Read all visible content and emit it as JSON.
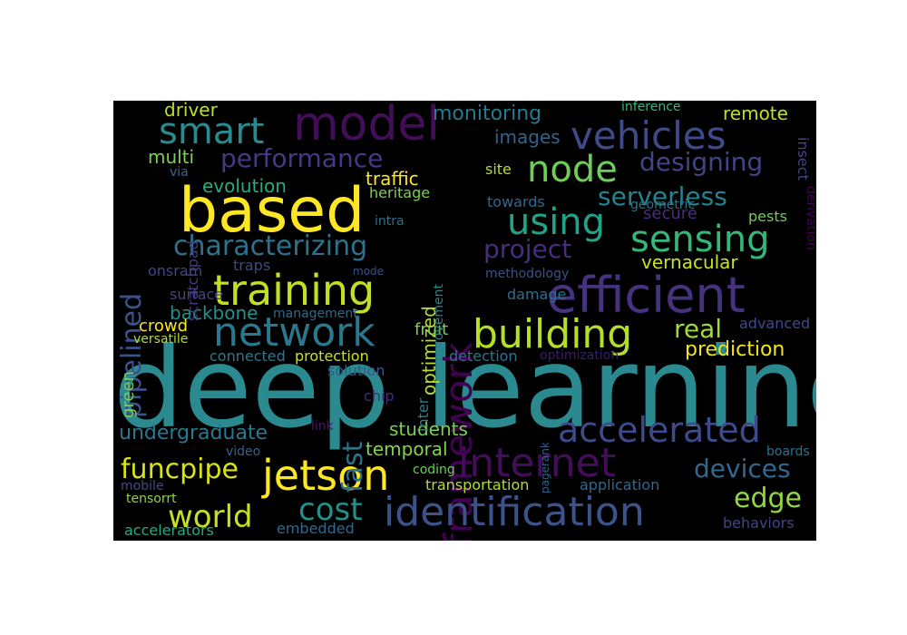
{
  "word_cloud": {
    "background": "#000000",
    "words": [
      {
        "text": "deep learning",
        "color": "#2a8a8f"
      },
      {
        "text": "based",
        "color": "#fde725"
      },
      {
        "text": "model",
        "color": "#440d5a"
      },
      {
        "text": "efficient",
        "color": "#46327e"
      },
      {
        "text": "framework",
        "color": "#440154"
      },
      {
        "text": "training",
        "color": "#c2df23"
      },
      {
        "text": "network",
        "color": "#2a788e"
      },
      {
        "text": "building",
        "color": "#b5de2b"
      },
      {
        "text": "jetson",
        "color": "#fde725"
      },
      {
        "text": "identification",
        "color": "#3b528b"
      },
      {
        "text": "internet",
        "color": "#440d5a"
      },
      {
        "text": "accelerated",
        "color": "#3e4a89"
      },
      {
        "text": "sensing",
        "color": "#35b779"
      },
      {
        "text": "smart",
        "color": "#2a8a8f"
      },
      {
        "text": "vehicles",
        "color": "#3e4a89"
      },
      {
        "text": "node",
        "color": "#6ece58"
      },
      {
        "text": "using",
        "color": "#20a386"
      },
      {
        "text": "characterizing",
        "color": "#2c728e"
      },
      {
        "text": "pipelined",
        "color": "#3b528b"
      },
      {
        "text": "funcpipe",
        "color": "#d8e219"
      },
      {
        "text": "cost",
        "color": "#21918c"
      },
      {
        "text": "world",
        "color": "#c8e020"
      },
      {
        "text": "edge",
        "color": "#8fd744"
      },
      {
        "text": "devices",
        "color": "#31688e"
      },
      {
        "text": "fast",
        "color": "#2c728e"
      },
      {
        "text": "performance",
        "color": "#443a83"
      },
      {
        "text": "designing",
        "color": "#414487"
      },
      {
        "text": "serverless",
        "color": "#26828e"
      },
      {
        "text": "project",
        "color": "#472d7b"
      },
      {
        "text": "real",
        "color": "#a0da39"
      },
      {
        "text": "prediction",
        "color": "#f1e51d"
      },
      {
        "text": "undergraduate",
        "color": "#2a788e"
      },
      {
        "text": "students",
        "color": "#7ad151"
      },
      {
        "text": "temporal",
        "color": "#84d44b"
      },
      {
        "text": "monitoring",
        "color": "#2a788e"
      },
      {
        "text": "images",
        "color": "#33638d"
      },
      {
        "text": "remote",
        "color": "#c2df23"
      },
      {
        "text": "driver",
        "color": "#bddf26"
      },
      {
        "text": "multi",
        "color": "#7ad151"
      },
      {
        "text": "evolution",
        "color": "#25ac82"
      },
      {
        "text": "traffic",
        "color": "#fde725"
      },
      {
        "text": "heritage",
        "color": "#7ad151"
      },
      {
        "text": "optimized",
        "color": "#b5de2b"
      },
      {
        "text": "vernacular",
        "color": "#cae11f"
      },
      {
        "text": "secure",
        "color": "#472d7b"
      },
      {
        "text": "backbone",
        "color": "#21918c"
      },
      {
        "text": "green",
        "color": "#7ad151"
      },
      {
        "text": "crowd",
        "color": "#fde725"
      },
      {
        "text": "onsram",
        "color": "#414487"
      },
      {
        "text": "surface",
        "color": "#404688"
      },
      {
        "text": "traps",
        "color": "#3e4a89"
      },
      {
        "text": "management",
        "color": "#31688e"
      },
      {
        "text": "fruit",
        "color": "#7fd34e"
      },
      {
        "text": "damage",
        "color": "#2e6e8e"
      },
      {
        "text": "methodology",
        "color": "#3b528b"
      },
      {
        "text": "towards",
        "color": "#31688e"
      },
      {
        "text": "site",
        "color": "#b5de2b"
      },
      {
        "text": "pests",
        "color": "#6ece58"
      },
      {
        "text": "advanced",
        "color": "#3e4a89"
      },
      {
        "text": "detection",
        "color": "#2c728e"
      },
      {
        "text": "optimization",
        "color": "#3b1c6c"
      },
      {
        "text": "connected",
        "color": "#2a788e"
      },
      {
        "text": "protection",
        "color": "#cae11f"
      },
      {
        "text": "solution",
        "color": "#39568c"
      },
      {
        "text": "chip",
        "color": "#472d7b"
      },
      {
        "text": "inter",
        "color": "#26828e"
      },
      {
        "text": "link",
        "color": "#481769"
      },
      {
        "text": "video",
        "color": "#33638d"
      },
      {
        "text": "mobile",
        "color": "#3e4a89"
      },
      {
        "text": "tensorrt",
        "color": "#8fd744"
      },
      {
        "text": "accelerators",
        "color": "#25ac82"
      },
      {
        "text": "embedded",
        "color": "#31688e"
      },
      {
        "text": "coding",
        "color": "#6ece58"
      },
      {
        "text": "transportation",
        "color": "#b5de2b"
      },
      {
        "text": "application",
        "color": "#31688e"
      },
      {
        "text": "behaviors",
        "color": "#414487"
      },
      {
        "text": "boards",
        "color": "#2c728e"
      },
      {
        "text": "pagerank",
        "color": "#33638d"
      },
      {
        "text": "versatile",
        "color": "#addc30"
      },
      {
        "text": "scratchpad",
        "color": "#443a83"
      },
      {
        "text": "via",
        "color": "#31688e"
      },
      {
        "text": "intra",
        "color": "#2c728e"
      },
      {
        "text": "mode",
        "color": "#3b528b"
      },
      {
        "text": "improvement",
        "color": "#26828e"
      },
      {
        "text": "inference",
        "color": "#35b779"
      },
      {
        "text": "geometric",
        "color": "#2a788e"
      },
      {
        "text": "insect",
        "color": "#414487"
      },
      {
        "text": "derivation",
        "color": "#440154"
      }
    ]
  }
}
